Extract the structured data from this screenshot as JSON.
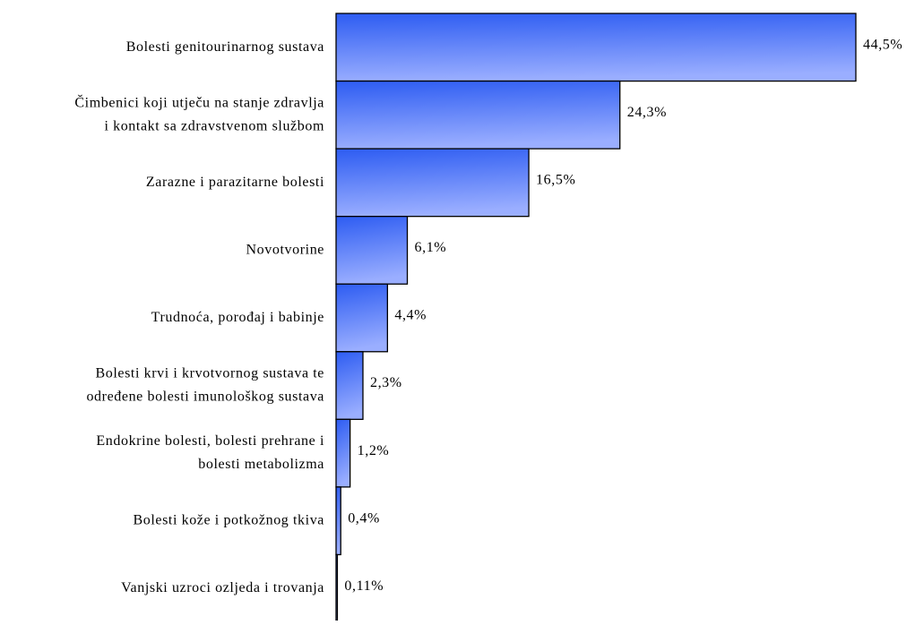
{
  "chart_data": {
    "type": "bar",
    "orientation": "horizontal",
    "categories": [
      [
        "Bolesti genitourinarnog sustava"
      ],
      [
        "Čimbenici koji utječu na stanje zdravlja",
        "i kontakt sa zdravstvenom službom"
      ],
      [
        "Zarazne i parazitarne bolesti"
      ],
      [
        "Novotvorine"
      ],
      [
        "Trudnoća, porođaj i babinje"
      ],
      [
        "Bolesti krvi i krvotvornog sustava te",
        "određene bolesti imunološkog sustava"
      ],
      [
        "Endokrine bolesti, bolesti prehrane i",
        "bolesti metabolizma"
      ],
      [
        "Bolesti kože i potkožnog tkiva"
      ],
      [
        "Vanjski uzroci ozljeda i trovanja"
      ]
    ],
    "values": [
      44.5,
      24.3,
      16.5,
      6.1,
      4.4,
      2.3,
      1.2,
      0.4,
      0.11
    ],
    "value_labels": [
      "44,5%",
      "24,3%",
      "16,5%",
      "6,1%",
      "4,4%",
      "2,3%",
      "1,2%",
      "0,4%",
      "0,11%"
    ],
    "color": [
      "#2d5cf2",
      "#9aaeff"
    ]
  }
}
